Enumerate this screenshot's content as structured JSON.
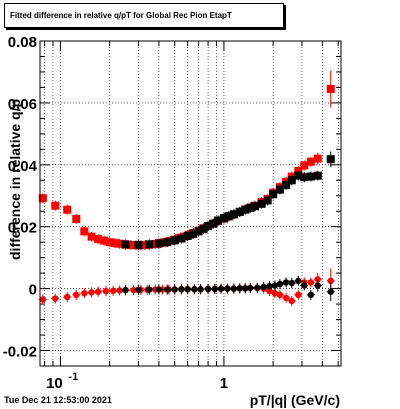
{
  "figure": {
    "title": "Fitted difference in relative q/pT for Global Rec Pion EtapT",
    "timestamp": "Tue Dec 21 12:53:00 2021"
  },
  "chart_data": {
    "type": "scatter",
    "title": "Fitted difference in relative q/pT for Global Rec Pion EtapT",
    "xlabel": "pT/|q| (GeV/c)",
    "ylabel": "difference in relative q/p",
    "xscale": "log",
    "xlim": [
      0.075,
      5.2
    ],
    "ylim": [
      -0.025,
      0.08
    ],
    "xticks": [
      {
        "v": 0.1,
        "label": "10",
        "sup": "-1"
      },
      {
        "v": 1,
        "label": "1",
        "sup": ""
      }
    ],
    "yticks": [
      {
        "v": -0.02,
        "label": "-0.02"
      },
      {
        "v": 0,
        "label": "0"
      },
      {
        "v": 0.02,
        "label": "0.02"
      },
      {
        "v": 0.04,
        "label": "0.04"
      },
      {
        "v": 0.06,
        "label": "0.06"
      },
      {
        "v": 0.08,
        "label": "0.08"
      }
    ],
    "grid": true,
    "series": [
      {
        "color": "#ff0000",
        "marker": "square",
        "x": [
          0.078,
          0.093,
          0.11,
          0.125,
          0.14,
          0.155,
          0.17,
          0.185,
          0.2,
          0.215,
          0.23,
          0.25,
          0.27,
          0.29,
          0.31,
          0.33,
          0.35,
          0.38,
          0.41,
          0.44,
          0.47,
          0.5,
          0.53,
          0.57,
          0.61,
          0.65,
          0.7,
          0.75,
          0.8,
          0.86,
          0.92,
          1.0,
          1.07,
          1.15,
          1.25,
          1.35,
          1.45,
          1.55,
          1.7,
          1.85,
          2.0,
          2.2,
          2.4,
          2.6,
          2.85,
          3.1,
          3.4,
          3.75,
          4.5
        ],
        "y": [
          0.0292,
          0.0268,
          0.0255,
          0.0225,
          0.0185,
          0.0168,
          0.016,
          0.0155,
          0.015,
          0.0147,
          0.0145,
          0.0142,
          0.0141,
          0.014,
          0.014,
          0.0141,
          0.0142,
          0.0144,
          0.0147,
          0.015,
          0.0154,
          0.0158,
          0.0163,
          0.0168,
          0.0174,
          0.018,
          0.0187,
          0.0195,
          0.0202,
          0.021,
          0.0218,
          0.0226,
          0.0233,
          0.024,
          0.0248,
          0.0256,
          0.0262,
          0.0268,
          0.028,
          0.029,
          0.031,
          0.0328,
          0.0345,
          0.0362,
          0.038,
          0.0398,
          0.041,
          0.042,
          0.0645
        ],
        "yerr": [
          0.0004,
          0.0004,
          0.0004,
          0.0004,
          0.0004,
          0.0003,
          0.0003,
          0.0003,
          0.0003,
          0.0003,
          0.0003,
          0.0003,
          0.0003,
          0.0003,
          0.0003,
          0.0003,
          0.0003,
          0.0003,
          0.0003,
          0.0003,
          0.0003,
          0.0003,
          0.0003,
          0.0003,
          0.0003,
          0.0003,
          0.0003,
          0.0003,
          0.0003,
          0.0003,
          0.0003,
          0.0004,
          0.0004,
          0.0004,
          0.0004,
          0.0005,
          0.0005,
          0.0005,
          0.0006,
          0.0006,
          0.0007,
          0.0008,
          0.0009,
          0.001,
          0.0012,
          0.0014,
          0.0016,
          0.002,
          0.006
        ]
      },
      {
        "color": "#000000",
        "marker": "square",
        "x": [
          0.25,
          0.3,
          0.35,
          0.4,
          0.45,
          0.5,
          0.55,
          0.6,
          0.65,
          0.7,
          0.75,
          0.8,
          0.86,
          0.92,
          1.0,
          1.07,
          1.15,
          1.25,
          1.35,
          1.45,
          1.55,
          1.7,
          1.85,
          2.0,
          2.2,
          2.4,
          2.6,
          2.85,
          3.1,
          3.4,
          3.75,
          4.5
        ],
        "y": [
          0.0143,
          0.0141,
          0.0143,
          0.0146,
          0.015,
          0.0156,
          0.0162,
          0.017,
          0.0177,
          0.0185,
          0.0193,
          0.0202,
          0.021,
          0.022,
          0.0228,
          0.0234,
          0.024,
          0.0248,
          0.0255,
          0.0261,
          0.0266,
          0.0274,
          0.0285,
          0.0305,
          0.032,
          0.0335,
          0.035,
          0.0365,
          0.036,
          0.0362,
          0.0365,
          0.0418
        ],
        "yerr": [
          0.0003,
          0.0003,
          0.0003,
          0.0003,
          0.0003,
          0.0003,
          0.0003,
          0.0003,
          0.0003,
          0.0003,
          0.0003,
          0.0003,
          0.0003,
          0.0003,
          0.0004,
          0.0004,
          0.0004,
          0.0004,
          0.0005,
          0.0005,
          0.0005,
          0.0006,
          0.0006,
          0.0007,
          0.0008,
          0.0009,
          0.001,
          0.0011,
          0.0012,
          0.0013,
          0.0015,
          0.0025
        ]
      },
      {
        "color": "#ff0000",
        "marker": "circle",
        "x": [
          0.078,
          0.093,
          0.11,
          0.125,
          0.14,
          0.155,
          0.17,
          0.19,
          0.21,
          0.23,
          0.25,
          0.28,
          0.31,
          0.34,
          0.38,
          0.42,
          0.46,
          0.5,
          0.55,
          0.6,
          0.66,
          0.72,
          0.8,
          0.88,
          0.96,
          1.05,
          1.15,
          1.25,
          1.35,
          1.45,
          1.6,
          1.75,
          1.9,
          2.05,
          2.2,
          2.4,
          2.6,
          2.85,
          3.1,
          3.4,
          3.75,
          4.5
        ],
        "y": [
          -0.0035,
          -0.0032,
          -0.0027,
          -0.002,
          -0.0015,
          -0.0012,
          -0.001,
          -0.0008,
          -0.0007,
          -0.0006,
          -0.0005,
          -0.0005,
          -0.0004,
          -0.0004,
          -0.0003,
          -0.0003,
          -0.0003,
          -0.0003,
          -0.0002,
          -0.0002,
          -0.0002,
          -0.0002,
          -0.0001,
          -0.0001,
          0.0,
          0.0,
          0.0,
          0.0001,
          0.0001,
          0.0002,
          0.0002,
          0.0,
          -0.0008,
          -0.0015,
          -0.002,
          -0.003,
          -0.004,
          -0.002,
          0.002,
          0.002,
          0.003,
          0.0025
        ],
        "yerr": [
          0.0004,
          0.0004,
          0.0004,
          0.0004,
          0.0004,
          0.0003,
          0.0003,
          0.0003,
          0.0003,
          0.0003,
          0.0003,
          0.0003,
          0.0003,
          0.0003,
          0.0003,
          0.0003,
          0.0003,
          0.0003,
          0.0003,
          0.0003,
          0.0003,
          0.0003,
          0.0003,
          0.0003,
          0.0003,
          0.0004,
          0.0004,
          0.0004,
          0.0004,
          0.0005,
          0.0005,
          0.0006,
          0.0006,
          0.0007,
          0.0008,
          0.0009,
          0.001,
          0.0012,
          0.0014,
          0.0016,
          0.002,
          0.004
        ]
      },
      {
        "color": "#000000",
        "marker": "circle",
        "x": [
          0.25,
          0.3,
          0.35,
          0.4,
          0.45,
          0.5,
          0.55,
          0.6,
          0.66,
          0.72,
          0.8,
          0.88,
          0.96,
          1.05,
          1.15,
          1.25,
          1.35,
          1.45,
          1.6,
          1.75,
          1.9,
          2.05,
          2.2,
          2.4,
          2.6,
          2.85,
          3.1,
          3.4,
          3.75,
          4.5
        ],
        "y": [
          -0.0005,
          -0.0004,
          -0.0003,
          -0.0003,
          -0.0003,
          -0.0003,
          -0.0002,
          -0.0002,
          -0.0002,
          -0.0002,
          -0.0001,
          -0.0001,
          0.0,
          0.0,
          0.0,
          0.0001,
          0.0001,
          0.0002,
          0.0003,
          0.0005,
          0.0008,
          0.001,
          0.0015,
          0.002,
          0.0018,
          0.0025,
          0.001,
          -0.002,
          0.001,
          -0.001
        ],
        "yerr": [
          0.0003,
          0.0003,
          0.0003,
          0.0003,
          0.0003,
          0.0003,
          0.0003,
          0.0003,
          0.0003,
          0.0003,
          0.0003,
          0.0003,
          0.0003,
          0.0004,
          0.0004,
          0.0004,
          0.0004,
          0.0005,
          0.0005,
          0.0006,
          0.0006,
          0.0007,
          0.0008,
          0.0009,
          0.001,
          0.0012,
          0.0014,
          0.0016,
          0.002,
          0.003
        ]
      }
    ]
  }
}
